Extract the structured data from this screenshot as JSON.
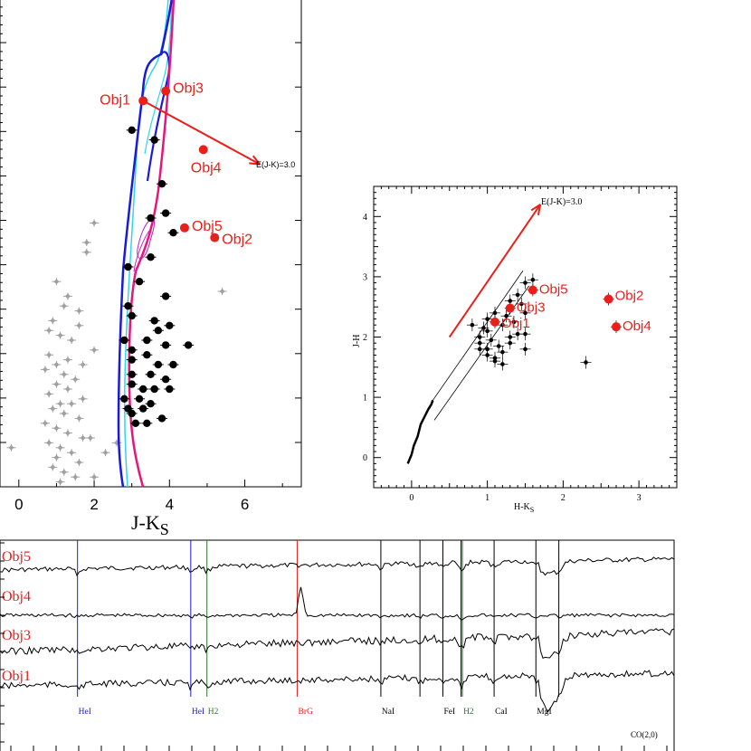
{
  "colors": {
    "red": "#e8201c",
    "blue": "#1a1ad8",
    "cyan": "#2fd6e8",
    "magenta": "#e8167a",
    "purple": "#c020c0",
    "gray": "#a0a0a0",
    "green": "#2a7a2a",
    "black": "#000000"
  },
  "chart_data": [
    {
      "type": "scatter",
      "name": "cmd",
      "xlabel_main": "J-K",
      "xlabel_sub": "S",
      "xlim": [
        -0.5,
        7.5
      ],
      "xticks": [
        "0",
        "2",
        "4",
        "6"
      ],
      "reddening_label": "E(J-K)=3.0",
      "objects": [
        {
          "label": "Obj1",
          "x": 3.3,
          "y": 0.21
        },
        {
          "label": "Obj3",
          "x": 3.9,
          "y": 0.19
        },
        {
          "label": "Obj4",
          "x": 4.9,
          "y": 0.31
        },
        {
          "label": "Obj5",
          "x": 4.4,
          "y": 0.47
        },
        {
          "label": "Obj2",
          "x": 5.2,
          "y": 0.49
        }
      ],
      "reddening_vector": {
        "x0": 3.3,
        "y0": 0.21,
        "x1": 6.4,
        "y1": 0.34
      },
      "black_points": [
        [
          3.0,
          0.27
        ],
        [
          3.6,
          0.29
        ],
        [
          3.8,
          0.38
        ],
        [
          3.5,
          0.45
        ],
        [
          3.9,
          0.44
        ],
        [
          4.1,
          0.48
        ],
        [
          3.5,
          0.53
        ],
        [
          2.9,
          0.55
        ],
        [
          3.2,
          0.58
        ],
        [
          3.9,
          0.61
        ],
        [
          2.9,
          0.63
        ],
        [
          3.0,
          0.65
        ],
        [
          3.6,
          0.66
        ],
        [
          3.7,
          0.68
        ],
        [
          4.0,
          0.67
        ],
        [
          2.8,
          0.7
        ],
        [
          3.4,
          0.7
        ],
        [
          3.9,
          0.71
        ],
        [
          4.5,
          0.71
        ],
        [
          3.0,
          0.72
        ],
        [
          3.4,
          0.73
        ],
        [
          3.0,
          0.74
        ],
        [
          3.7,
          0.75
        ],
        [
          4.1,
          0.75
        ],
        [
          3.0,
          0.77
        ],
        [
          3.5,
          0.77
        ],
        [
          3.9,
          0.78
        ],
        [
          3.0,
          0.79
        ],
        [
          3.3,
          0.8
        ],
        [
          3.6,
          0.8
        ],
        [
          4.0,
          0.8
        ],
        [
          2.8,
          0.82
        ],
        [
          3.2,
          0.82
        ],
        [
          3.5,
          0.83
        ],
        [
          2.9,
          0.84
        ],
        [
          3.3,
          0.84
        ],
        [
          3.0,
          0.85
        ],
        [
          3.8,
          0.86
        ],
        [
          3.1,
          0.87
        ],
        [
          3.4,
          0.87
        ]
      ],
      "gray_points": [
        [
          2.0,
          0.46
        ],
        [
          1.8,
          0.5
        ],
        [
          1.8,
          0.52
        ],
        [
          1.0,
          0.58
        ],
        [
          1.3,
          0.61
        ],
        [
          1.2,
          0.63
        ],
        [
          1.6,
          0.64
        ],
        [
          0.9,
          0.66
        ],
        [
          1.6,
          0.67
        ],
        [
          0.8,
          0.68
        ],
        [
          1.1,
          0.69
        ],
        [
          1.4,
          0.7
        ],
        [
          2.0,
          0.72
        ],
        [
          0.8,
          0.73
        ],
        [
          1.3,
          0.74
        ],
        [
          1.0,
          0.75
        ],
        [
          1.7,
          0.75
        ],
        [
          0.7,
          0.76
        ],
        [
          1.2,
          0.77
        ],
        [
          1.5,
          0.78
        ],
        [
          1.0,
          0.79
        ],
        [
          1.3,
          0.8
        ],
        [
          0.8,
          0.81
        ],
        [
          1.7,
          0.82
        ],
        [
          1.1,
          0.83
        ],
        [
          1.4,
          0.83
        ],
        [
          0.9,
          0.84
        ],
        [
          1.2,
          0.85
        ],
        [
          1.6,
          0.86
        ],
        [
          0.7,
          0.87
        ],
        [
          1.0,
          0.88
        ],
        [
          1.3,
          0.89
        ],
        [
          1.7,
          0.9
        ],
        [
          0.8,
          0.91
        ],
        [
          1.1,
          0.92
        ],
        [
          1.4,
          0.93
        ],
        [
          2.3,
          0.93
        ],
        [
          1.0,
          0.94
        ],
        [
          1.6,
          0.95
        ],
        [
          0.9,
          0.96
        ],
        [
          1.2,
          0.97
        ],
        [
          1.5,
          0.98
        ],
        [
          2.0,
          0.98
        ],
        [
          1.1,
          0.99
        ],
        [
          -0.2,
          0.92
        ],
        [
          5.4,
          0.6
        ],
        [
          2.6,
          0.91
        ],
        [
          1.9,
          0.9
        ]
      ]
    },
    {
      "type": "scatter",
      "name": "ccd",
      "xlabel": "H-K",
      "xlabel_sub": "S",
      "ylabel": "J-H",
      "xlim": [
        -0.5,
        3.5
      ],
      "ylim": [
        -0.5,
        4.5
      ],
      "xticks": [
        0,
        1,
        2,
        3
      ],
      "yticks": [
        0,
        1,
        2,
        3,
        4
      ],
      "reddening_label": "E(J-K)=3.0",
      "reddening_vector": {
        "x0": 0.5,
        "y0": 2.0,
        "x1": 1.7,
        "y1": 4.2
      },
      "objects": [
        {
          "label": "Obj5",
          "x": 1.6,
          "y": 2.78
        },
        {
          "label": "Obj3",
          "x": 1.3,
          "y": 2.48
        },
        {
          "label": "Obj1",
          "x": 1.1,
          "y": 2.25
        },
        {
          "label": "Obj2",
          "x": 2.6,
          "y": 2.63
        },
        {
          "label": "Obj4",
          "x": 2.7,
          "y": 2.17
        }
      ],
      "black_points": [
        [
          0.9,
          1.9
        ],
        [
          1.0,
          2.1
        ],
        [
          1.1,
          2.4
        ],
        [
          1.0,
          1.8
        ],
        [
          0.9,
          2.0
        ],
        [
          1.2,
          2.2
        ],
        [
          1.3,
          2.6
        ],
        [
          1.4,
          2.7
        ],
        [
          1.5,
          2.9
        ],
        [
          1.6,
          2.95
        ],
        [
          1.0,
          1.7
        ],
        [
          1.1,
          1.65
        ],
        [
          1.2,
          1.75
        ],
        [
          1.3,
          1.9
        ],
        [
          1.4,
          2.05
        ],
        [
          1.5,
          2.4
        ],
        [
          1.0,
          2.3
        ],
        [
          0.8,
          2.2
        ],
        [
          0.9,
          1.8
        ],
        [
          1.1,
          1.6
        ],
        [
          1.2,
          1.55
        ],
        [
          1.3,
          2.0
        ],
        [
          1.5,
          1.8
        ],
        [
          1.5,
          2.05
        ],
        [
          2.3,
          1.58
        ],
        [
          1.05,
          1.95
        ],
        [
          1.15,
          1.85
        ],
        [
          1.25,
          2.35
        ],
        [
          0.95,
          2.15
        ],
        [
          1.35,
          2.25
        ],
        [
          1.45,
          2.55
        ]
      ],
      "locus": [
        [
          -0.05,
          -0.1
        ],
        [
          0.0,
          0.05
        ],
        [
          0.03,
          0.2
        ],
        [
          0.08,
          0.35
        ],
        [
          0.12,
          0.55
        ],
        [
          0.18,
          0.7
        ],
        [
          0.22,
          0.8
        ],
        [
          0.26,
          0.88
        ],
        [
          0.28,
          0.95
        ]
      ],
      "band_lines": [
        [
          [
            0.28,
            0.95
          ],
          [
            1.47,
            3.1
          ]
        ],
        [
          [
            0.3,
            0.62
          ],
          [
            1.55,
            2.85
          ]
        ]
      ]
    },
    {
      "type": "line",
      "name": "spectra",
      "series": [
        {
          "name": "Obj5"
        },
        {
          "name": "Obj4"
        },
        {
          "name": "Obj3"
        },
        {
          "name": "Obj1"
        }
      ],
      "line_marks": [
        {
          "label": "HeI",
          "color": "#1a1ad8",
          "xfrac": 0.115
        },
        {
          "label": "HeI",
          "color": "#1a1ad8",
          "xfrac": 0.283
        },
        {
          "label": "H2",
          "color": "#2a7a2a",
          "xfrac": 0.307
        },
        {
          "label": "BrG",
          "color": "#e8201c",
          "xfrac": 0.441
        },
        {
          "label": "NaI",
          "color": "#000000",
          "xfrac": 0.565
        },
        {
          "label": "",
          "color": "#000000",
          "xfrac": 0.623
        },
        {
          "label": "FeI",
          "color": "#000000",
          "xfrac": 0.657
        },
        {
          "label": "",
          "color": "#000000",
          "xfrac": 0.684
        },
        {
          "label": "H2",
          "color": "#2a7a2a",
          "xfrac": 0.686
        },
        {
          "label": "CaI",
          "color": "#000000",
          "xfrac": 0.733
        },
        {
          "label": "MgI",
          "color": "#000000",
          "xfrac": 0.795
        },
        {
          "label": "",
          "color": "#000000",
          "xfrac": 0.829
        }
      ],
      "co_label": "CO(2,0)"
    }
  ]
}
